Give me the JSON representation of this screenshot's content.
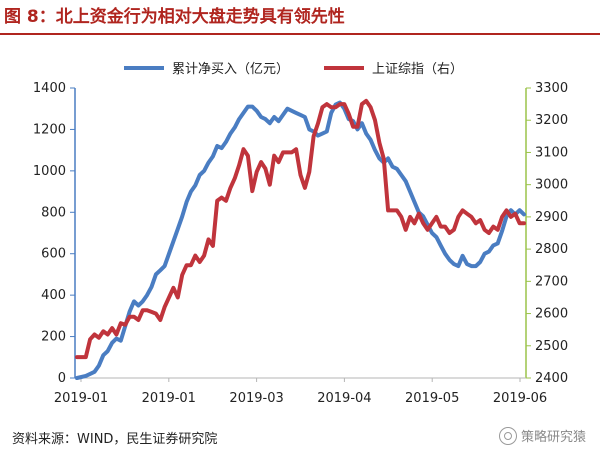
{
  "title": "图 8：北上资金行为相对大盘走势具有领先性",
  "source": "资料来源：WIND，民生证券研究院",
  "watermark": "策略研究猿",
  "colors": {
    "series1": "#4a7dc2",
    "series2": "#c0343c",
    "leftAxis": "#4a7dc2",
    "rightAxis": "#9bc34a"
  },
  "chart_data": {
    "type": "line",
    "x_tick_labels": [
      "2019-01",
      "2019-01",
      "2019-03",
      "2019-04",
      "2019-05",
      "2019-06"
    ],
    "left_axis": {
      "ylim": [
        0,
        1400
      ],
      "ticks": [
        0,
        200,
        400,
        600,
        800,
        1000,
        1200,
        1400
      ]
    },
    "right_axis": {
      "ylim": [
        2400,
        3300
      ],
      "ticks": [
        2400,
        2500,
        2600,
        2700,
        2800,
        2900,
        3000,
        3100,
        3200,
        3300
      ]
    },
    "grid": false,
    "legend_position": "top",
    "series": [
      {
        "name": "累计净买入（亿元）",
        "axis": "left",
        "values": [
          0,
          5,
          10,
          20,
          30,
          60,
          110,
          130,
          170,
          190,
          180,
          250,
          320,
          370,
          350,
          370,
          400,
          440,
          500,
          520,
          540,
          600,
          660,
          720,
          780,
          850,
          900,
          930,
          980,
          1000,
          1040,
          1070,
          1120,
          1110,
          1140,
          1180,
          1210,
          1250,
          1280,
          1310,
          1310,
          1290,
          1260,
          1250,
          1230,
          1260,
          1240,
          1270,
          1300,
          1290,
          1280,
          1270,
          1260,
          1200,
          1190,
          1170,
          1180,
          1190,
          1280,
          1320,
          1330,
          1300,
          1250,
          1240,
          1200,
          1230,
          1180,
          1150,
          1100,
          1060,
          1040,
          1060,
          1020,
          1010,
          980,
          950,
          900,
          850,
          800,
          780,
          740,
          700,
          680,
          640,
          600,
          570,
          550,
          540,
          590,
          550,
          540,
          540,
          560,
          600,
          610,
          640,
          650,
          710,
          780,
          810,
          790,
          810,
          790
        ]
      },
      {
        "name": "上证综指（右）",
        "axis": "right",
        "values": [
          2465,
          2465,
          2465,
          2520,
          2535,
          2525,
          2545,
          2535,
          2555,
          2535,
          2570,
          2565,
          2590,
          2590,
          2580,
          2610,
          2610,
          2605,
          2600,
          2580,
          2620,
          2650,
          2680,
          2650,
          2720,
          2750,
          2750,
          2780,
          2760,
          2780,
          2830,
          2810,
          2950,
          2960,
          2950,
          2990,
          3020,
          3060,
          3110,
          3090,
          2980,
          3040,
          3070,
          3050,
          3000,
          3090,
          3070,
          3100,
          3100,
          3100,
          3110,
          3030,
          2990,
          3040,
          3150,
          3190,
          3240,
          3250,
          3240,
          3240,
          3250,
          3250,
          3220,
          3180,
          3180,
          3250,
          3260,
          3240,
          3200,
          3130,
          3080,
          2920,
          2920,
          2920,
          2900,
          2860,
          2900,
          2880,
          2910,
          2880,
          2860,
          2880,
          2900,
          2870,
          2870,
          2850,
          2860,
          2900,
          2920,
          2910,
          2900,
          2880,
          2890,
          2860,
          2850,
          2870,
          2860,
          2900,
          2920,
          2900,
          2910,
          2880,
          2880
        ]
      }
    ]
  }
}
